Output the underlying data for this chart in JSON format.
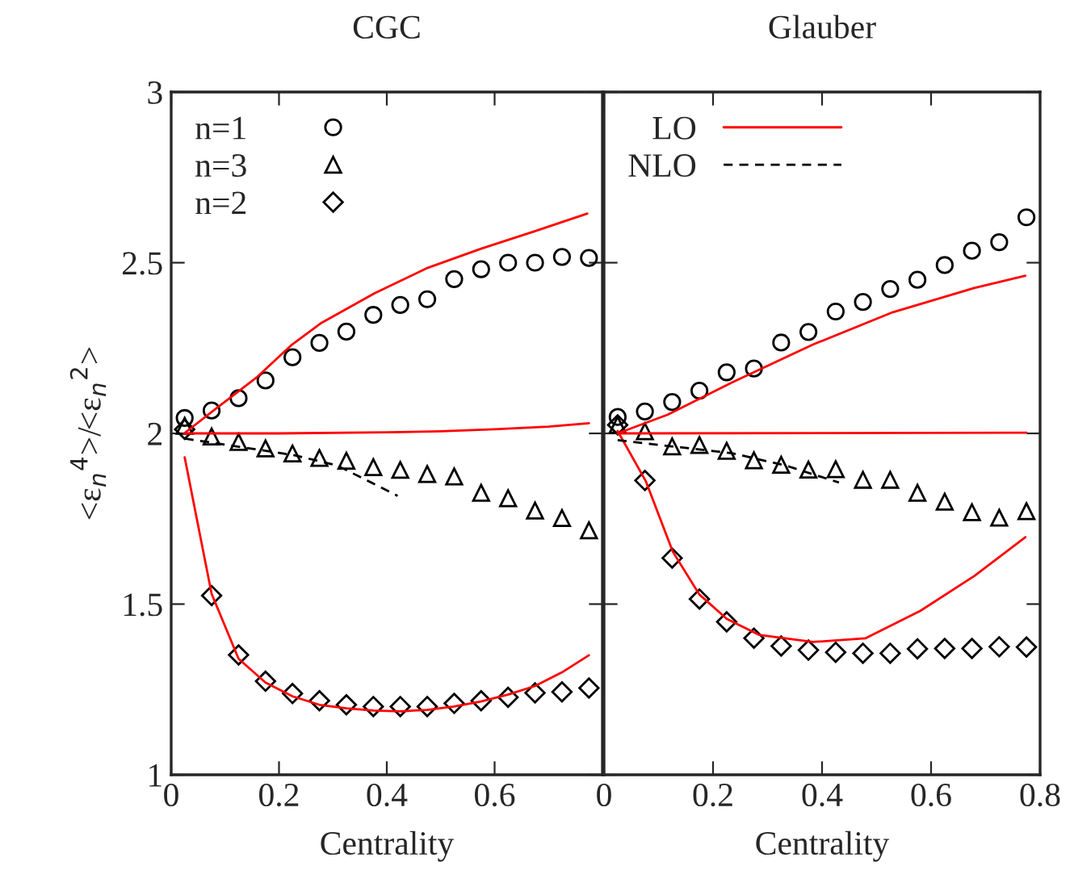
{
  "chart_data": [
    {
      "type": "line",
      "title": "CGC",
      "xlabel": "Centrality",
      "ylabel": "<ε$_{n}$$^{4}$>/<ε$_{n}$$^{2}$>",
      "xlim": [
        0,
        0.8
      ],
      "ylim": [
        1,
        3
      ],
      "xticks": [
        0,
        0.2,
        0.4,
        0.6
      ],
      "yticks": [
        1,
        1.5,
        2,
        2.5,
        3
      ],
      "legend": "top left",
      "series": [
        {
          "name": "n=1",
          "type": "scatter",
          "marker": "circle",
          "color": "#000000",
          "x": [
            0.025,
            0.075,
            0.125,
            0.175,
            0.225,
            0.275,
            0.325,
            0.375,
            0.425,
            0.475,
            0.525,
            0.575,
            0.625,
            0.675,
            0.725,
            0.775
          ],
          "values": [
            2.045,
            2.067,
            2.103,
            2.155,
            2.223,
            2.265,
            2.298,
            2.347,
            2.376,
            2.393,
            2.452,
            2.481,
            2.5,
            2.5,
            2.517,
            2.514
          ]
        },
        {
          "name": "n=3",
          "type": "scatter",
          "marker": "triangle",
          "color": "#000000",
          "x": [
            0.025,
            0.075,
            0.125,
            0.175,
            0.225,
            0.275,
            0.325,
            0.375,
            0.425,
            0.475,
            0.525,
            0.575,
            0.625,
            0.675,
            0.725,
            0.775
          ],
          "values": [
            2.022,
            1.991,
            1.975,
            1.956,
            1.941,
            1.928,
            1.92,
            1.901,
            1.893,
            1.881,
            1.874,
            1.826,
            1.81,
            1.774,
            1.752,
            1.716
          ]
        },
        {
          "name": "n=2",
          "type": "scatter",
          "marker": "diamond",
          "color": "#000000",
          "x": [
            0.025,
            0.075,
            0.125,
            0.175,
            0.225,
            0.275,
            0.325,
            0.375,
            0.425,
            0.475,
            0.525,
            0.575,
            0.625,
            0.675,
            0.725,
            0.775
          ],
          "values": [
            2.012,
            1.525,
            1.351,
            1.274,
            1.238,
            1.217,
            1.205,
            1.2,
            1.2,
            1.2,
            1.209,
            1.217,
            1.227,
            1.24,
            1.243,
            1.254
          ]
        },
        {
          "type": "line",
          "line_style": "solid",
          "color": "#ff0000",
          "x": [
            0.024,
            0.081,
            0.16,
            0.224,
            0.279,
            0.377,
            0.476,
            0.575,
            0.674,
            0.772
          ],
          "values": [
            2.0,
            2.07,
            2.166,
            2.26,
            2.324,
            2.41,
            2.485,
            2.541,
            2.592,
            2.644
          ]
        },
        {
          "type": "line",
          "line_style": "solid",
          "color": "#ff0000",
          "x": [
            0.025,
            0.2,
            0.4,
            0.5,
            0.6,
            0.7,
            0.775
          ],
          "values": [
            2.0,
            2.0,
            2.003,
            2.006,
            2.012,
            2.02,
            2.03
          ]
        },
        {
          "type": "line",
          "line_style": "solid",
          "color": "#ff0000",
          "x": [
            0.025,
            0.075,
            0.125,
            0.175,
            0.225,
            0.275,
            0.325,
            0.375,
            0.425,
            0.475,
            0.525,
            0.575,
            0.625,
            0.675,
            0.725,
            0.775
          ],
          "values": [
            1.93,
            1.53,
            1.34,
            1.27,
            1.23,
            1.205,
            1.195,
            1.188,
            1.186,
            1.19,
            1.2,
            1.215,
            1.235,
            1.26,
            1.3,
            1.35
          ]
        },
        {
          "type": "line",
          "line_style": "dashed",
          "color": "#000000",
          "x": [
            0.025,
            0.229,
            0.308,
            0.42
          ],
          "values": [
            1.985,
            1.936,
            1.906,
            1.817
          ]
        }
      ]
    },
    {
      "type": "line",
      "title": "Glauber",
      "xlabel": "Centrality",
      "xlim": [
        0,
        0.8
      ],
      "ylim": [
        1,
        3
      ],
      "xticks": [
        0,
        0.2,
        0.4,
        0.6,
        0.8
      ],
      "yticks": [
        1,
        1.5,
        2,
        2.5,
        3
      ],
      "tick_labels": "x",
      "legend": "top left",
      "series": [
        {
          "type": "scatter",
          "marker": "circle",
          "color": "#000000",
          "x": [
            0.025,
            0.075,
            0.125,
            0.175,
            0.225,
            0.275,
            0.325,
            0.375,
            0.425,
            0.475,
            0.525,
            0.575,
            0.625,
            0.675,
            0.725,
            0.775
          ],
          "values": [
            2.048,
            2.064,
            2.092,
            2.125,
            2.179,
            2.19,
            2.266,
            2.297,
            2.357,
            2.385,
            2.423,
            2.45,
            2.493,
            2.535,
            2.56,
            2.633
          ]
        },
        {
          "type": "scatter",
          "marker": "triangle",
          "color": "#000000",
          "x": [
            0.025,
            0.075,
            0.125,
            0.175,
            0.225,
            0.275,
            0.325,
            0.375,
            0.425,
            0.475,
            0.525,
            0.575,
            0.625,
            0.675,
            0.725,
            0.775
          ],
          "values": [
            2.025,
            2.006,
            1.962,
            1.966,
            1.949,
            1.921,
            1.908,
            1.894,
            1.895,
            1.864,
            1.864,
            1.826,
            1.8,
            1.769,
            1.753,
            1.772
          ]
        },
        {
          "type": "scatter",
          "marker": "diamond",
          "color": "#000000",
          "x": [
            0.025,
            0.075,
            0.125,
            0.175,
            0.225,
            0.275,
            0.325,
            0.375,
            0.425,
            0.475,
            0.525,
            0.575,
            0.625,
            0.675,
            0.725,
            0.775
          ],
          "values": [
            2.025,
            1.862,
            1.635,
            1.515,
            1.448,
            1.4,
            1.377,
            1.365,
            1.359,
            1.356,
            1.356,
            1.369,
            1.37,
            1.37,
            1.375,
            1.374
          ]
        },
        {
          "name": "LO",
          "type": "line",
          "line_style": "solid",
          "color": "#ff0000",
          "x": [
            0.025,
            0.117,
            0.236,
            0.383,
            0.53,
            0.679,
            0.773
          ],
          "values": [
            2.0,
            2.055,
            2.15,
            2.26,
            2.355,
            2.426,
            2.462
          ]
        },
        {
          "type": "line",
          "line_style": "solid",
          "color": "#ff0000",
          "x": [
            0.025,
            0.775
          ],
          "values": [
            2.0,
            2.002
          ]
        },
        {
          "type": "line",
          "line_style": "solid",
          "color": "#ff0000",
          "x": [
            0.025,
            0.077,
            0.126,
            0.175,
            0.225,
            0.284,
            0.383,
            0.48,
            0.58,
            0.68,
            0.773
          ],
          "values": [
            2.007,
            1.859,
            1.654,
            1.528,
            1.457,
            1.41,
            1.389,
            1.4,
            1.48,
            1.583,
            1.696
          ]
        },
        {
          "name": "NLO",
          "type": "line",
          "line_style": "dashed",
          "color": "#000000",
          "x": [
            0.025,
            0.235,
            0.333,
            0.431
          ],
          "values": [
            1.98,
            1.942,
            1.906,
            1.856
          ]
        }
      ]
    }
  ]
}
